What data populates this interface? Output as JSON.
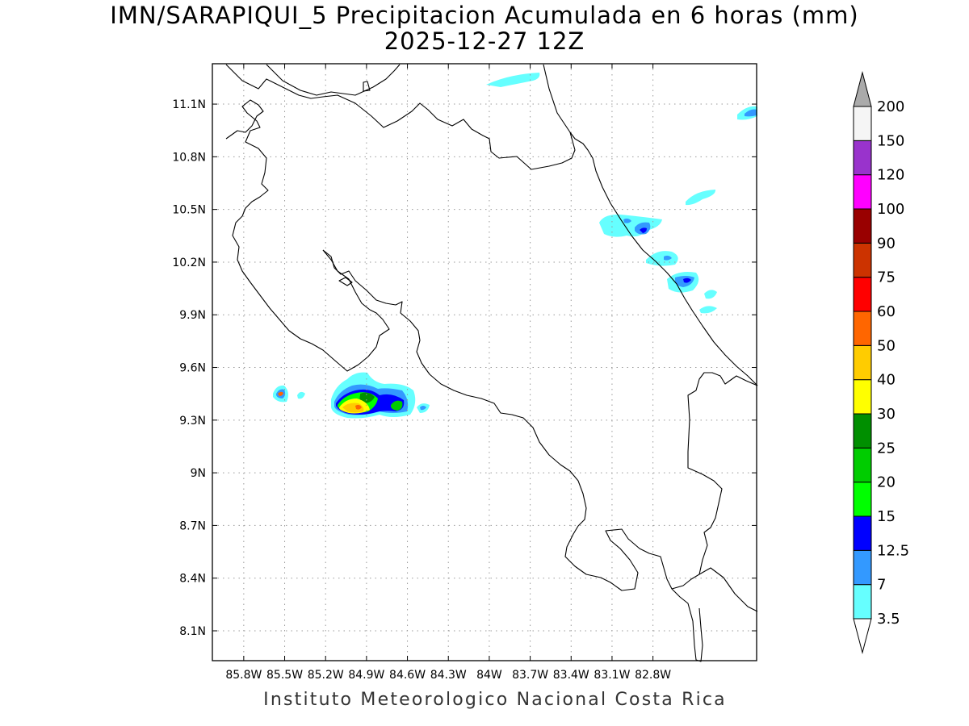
{
  "title": {
    "line1": "IMN/SARAPIQUI_5 Precipitacion Acumulada en 6 horas (mm)",
    "line2": "2025-12-27 12Z"
  },
  "footer": "Instituto Meteorologico Nacional Costa Rica",
  "map": {
    "lon_range": [
      -86.03,
      -82.04
    ],
    "lat_range": [
      7.93,
      11.33
    ],
    "lat_ticks": [
      {
        "value": 11.1,
        "label": "11.1N"
      },
      {
        "value": 10.8,
        "label": "10.8N"
      },
      {
        "value": 10.5,
        "label": "10.5N"
      },
      {
        "value": 10.2,
        "label": "10.2N"
      },
      {
        "value": 9.9,
        "label": "9.9N"
      },
      {
        "value": 9.6,
        "label": "9.6N"
      },
      {
        "value": 9.3,
        "label": "9.3N"
      },
      {
        "value": 9.0,
        "label": "9N"
      },
      {
        "value": 8.7,
        "label": "8.7N"
      },
      {
        "value": 8.4,
        "label": "8.4N"
      },
      {
        "value": 8.1,
        "label": "8.1N"
      }
    ],
    "lon_ticks": [
      {
        "value": -85.8,
        "label": "85.8W"
      },
      {
        "value": -85.5,
        "label": "85.5W"
      },
      {
        "value": -85.2,
        "label": "85.2W"
      },
      {
        "value": -84.9,
        "label": "84.9W"
      },
      {
        "value": -84.6,
        "label": "84.6W"
      },
      {
        "value": -84.3,
        "label": "84.3W"
      },
      {
        "value": -84.0,
        "label": "84W"
      },
      {
        "value": -83.7,
        "label": "83.7W"
      },
      {
        "value": -83.4,
        "label": "83.4W"
      },
      {
        "value": -83.1,
        "label": "83.1W"
      },
      {
        "value": -82.8,
        "label": "82.8W"
      }
    ],
    "grid": "dotted"
  },
  "legend": {
    "placement": "right",
    "levels": [
      {
        "label": "3.5",
        "color": "#66ffff"
      },
      {
        "label": "7",
        "color": "#3399ff"
      },
      {
        "label": "12.5",
        "color": "#0000ff"
      },
      {
        "label": "15",
        "color": "#00ff00"
      },
      {
        "label": "20",
        "color": "#00cc00"
      },
      {
        "label": "25",
        "color": "#008f00"
      },
      {
        "label": "30",
        "color": "#ffff00"
      },
      {
        "label": "40",
        "color": "#ffcc00"
      },
      {
        "label": "50",
        "color": "#ff6600"
      },
      {
        "label": "60",
        "color": "#ff0000"
      },
      {
        "label": "75",
        "color": "#cc3300"
      },
      {
        "label": "90",
        "color": "#990000"
      },
      {
        "label": "100",
        "color": "#ff00ff"
      },
      {
        "label": "120",
        "color": "#9933cc"
      },
      {
        "label": "150",
        "color": "#f5f5f5"
      },
      {
        "label": "200",
        "color": "#aaaaaa"
      }
    ]
  }
}
